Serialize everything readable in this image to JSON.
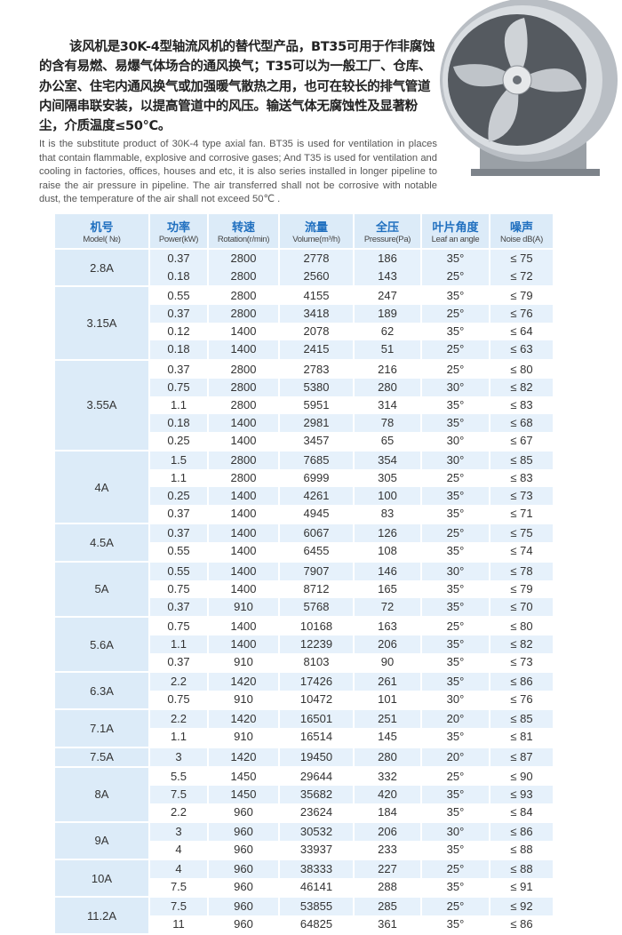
{
  "intro": {
    "cn": "该风机是30K-4型轴流风机的替代型产品，BT35可用于作非腐蚀的含有易燃、易爆气体场合的通风换气；T35可以为一般工厂、仓库、办公室、住宅内通风换气或加强暖气散热之用，也可在较长的排气管道内间隔串联安装，以提高管道中的风压。输送气体无腐蚀性及显著粉尘，介质温度≤50℃。",
    "en": "It is the substitute product of 30K-4 type axial fan. BT35 is used for ventilation in places that contain flammable, explosive and corrosive gases; And T35 is used for ventilation and cooling in factories, offices, houses and etc, it is also series installed in longer pipeline to raise the air pressure in pipeline. The air transferred shall not be corrosive with notable dust, the temperature of the air shall not exceed 50℃ ."
  },
  "colors": {
    "header_bg": "#dcebf8",
    "header_text": "#1f6fbf",
    "stripe": "#e6f1fb"
  },
  "table": {
    "headers": [
      {
        "cn": "机号",
        "en": "Model( №)"
      },
      {
        "cn": "功率",
        "en": "Power(kW)"
      },
      {
        "cn": "转速",
        "en": "Rotation(r/min)"
      },
      {
        "cn": "流量",
        "en": "Volume(m³/h)"
      },
      {
        "cn": "全压",
        "en": "Pressure(Pa)"
      },
      {
        "cn": "叶片角度",
        "en": "Leaf an angle"
      },
      {
        "cn": "噪声",
        "en": "Noise dB(A)"
      }
    ],
    "groups": [
      {
        "model": "2.8A",
        "rows": [
          [
            "0.37",
            "2800",
            "2778",
            "186",
            "35°",
            "≤ 75"
          ],
          [
            "0.18",
            "2800",
            "2560",
            "143",
            "25°",
            "≤ 72"
          ]
        ]
      },
      {
        "model": "3.15A",
        "rows": [
          [
            "0.55",
            "2800",
            "4155",
            "247",
            "35°",
            "≤ 79"
          ],
          [
            "0.37",
            "2800",
            "3418",
            "189",
            "25°",
            "≤ 76"
          ],
          [
            "0.12",
            "1400",
            "2078",
            "62",
            "35°",
            "≤ 64"
          ],
          [
            "0.18",
            "1400",
            "2415",
            "51",
            "25°",
            "≤ 63"
          ]
        ]
      },
      {
        "model": "3.55A",
        "rows": [
          [
            "0.37",
            "2800",
            "2783",
            "216",
            "25°",
            "≤ 80"
          ],
          [
            "0.75",
            "2800",
            "5380",
            "280",
            "30°",
            "≤ 82"
          ],
          [
            "1.1",
            "2800",
            "5951",
            "314",
            "35°",
            "≤ 83"
          ],
          [
            "0.18",
            "1400",
            "2981",
            "78",
            "35°",
            "≤ 68"
          ],
          [
            "0.25",
            "1400",
            "3457",
            "65",
            "30°",
            "≤ 67"
          ]
        ]
      },
      {
        "model": "4A",
        "rows": [
          [
            "1.5",
            "2800",
            "7685",
            "354",
            "30°",
            "≤ 85"
          ],
          [
            "1.1",
            "2800",
            "6999",
            "305",
            "25°",
            "≤ 83"
          ],
          [
            "0.25",
            "1400",
            "4261",
            "100",
            "35°",
            "≤ 73"
          ],
          [
            "0.37",
            "1400",
            "4945",
            "83",
            "35°",
            "≤ 71"
          ]
        ]
      },
      {
        "model": "4.5A",
        "rows": [
          [
            "0.37",
            "1400",
            "6067",
            "126",
            "25°",
            "≤ 75"
          ],
          [
            "0.55",
            "1400",
            "6455",
            "108",
            "35°",
            "≤ 74"
          ]
        ]
      },
      {
        "model": "5A",
        "rows": [
          [
            "0.55",
            "1400",
            "7907",
            "146",
            "30°",
            "≤ 78"
          ],
          [
            "0.75",
            "1400",
            "8712",
            "165",
            "35°",
            "≤ 79"
          ],
          [
            "0.37",
            "910",
            "5768",
            "72",
            "35°",
            "≤ 70"
          ]
        ]
      },
      {
        "model": "5.6A",
        "rows": [
          [
            "0.75",
            "1400",
            "10168",
            "163",
            "25°",
            "≤ 80"
          ],
          [
            "1.1",
            "1400",
            "12239",
            "206",
            "35°",
            "≤ 82"
          ],
          [
            "0.37",
            "910",
            "8103",
            "90",
            "35°",
            "≤ 73"
          ]
        ]
      },
      {
        "model": "6.3A",
        "rows": [
          [
            "2.2",
            "1420",
            "17426",
            "261",
            "35°",
            "≤ 86"
          ],
          [
            "0.75",
            "910",
            "10472",
            "101",
            "30°",
            "≤ 76"
          ]
        ]
      },
      {
        "model": "7.1A",
        "rows": [
          [
            "2.2",
            "1420",
            "16501",
            "251",
            "20°",
            "≤ 85"
          ],
          [
            "1.1",
            "910",
            "16514",
            "145",
            "35°",
            "≤ 81"
          ]
        ]
      },
      {
        "model": "7.5A",
        "rows": [
          [
            "3",
            "1420",
            "19450",
            "280",
            "20°",
            "≤ 87"
          ]
        ]
      },
      {
        "model": "8A",
        "rows": [
          [
            "5.5",
            "1450",
            "29644",
            "332",
            "25°",
            "≤ 90"
          ],
          [
            "7.5",
            "1450",
            "35682",
            "420",
            "35°",
            "≤ 93"
          ],
          [
            "2.2",
            "960",
            "23624",
            "184",
            "35°",
            "≤ 84"
          ]
        ]
      },
      {
        "model": "9A",
        "rows": [
          [
            "3",
            "960",
            "30532",
            "206",
            "30°",
            "≤ 86"
          ],
          [
            "4",
            "960",
            "33937",
            "233",
            "35°",
            "≤ 88"
          ]
        ]
      },
      {
        "model": "10A",
        "rows": [
          [
            "4",
            "960",
            "38333",
            "227",
            "25°",
            "≤ 88"
          ],
          [
            "7.5",
            "960",
            "46141",
            "288",
            "35°",
            "≤ 91"
          ]
        ]
      },
      {
        "model": "11.2A",
        "rows": [
          [
            "7.5",
            "960",
            "53855",
            "285",
            "25°",
            "≤ 92"
          ],
          [
            "11",
            "960",
            "64825",
            "361",
            "35°",
            "≤ 86"
          ]
        ]
      }
    ]
  }
}
